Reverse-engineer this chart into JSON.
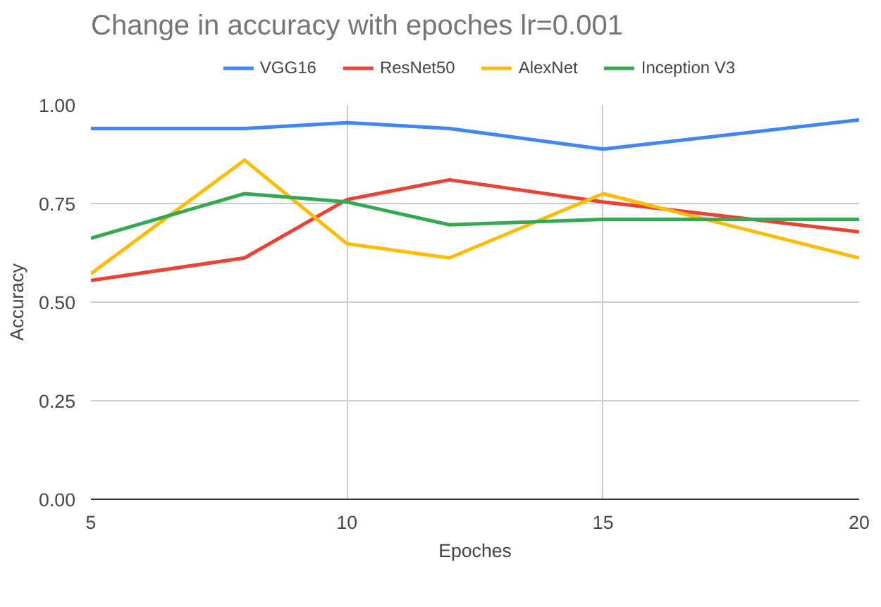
{
  "chart_data": {
    "type": "line",
    "title": "Change in accuracy with epoches lr=0.001",
    "xlabel": "Epoches",
    "ylabel": "Accuracy",
    "x": [
      5,
      8,
      10,
      12,
      15,
      20
    ],
    "series": [
      {
        "name": "VGG16",
        "color": "#4285f4",
        "values": [
          0.94,
          0.94,
          0.955,
          0.94,
          0.888,
          0.962
        ]
      },
      {
        "name": "ResNet50",
        "color": "#ea4335",
        "values": [
          0.555,
          0.612,
          0.76,
          0.81,
          0.754,
          0.678
        ]
      },
      {
        "name": "AlexNet",
        "color": "#fbbc04",
        "values": [
          0.572,
          0.86,
          0.648,
          0.612,
          0.775,
          0.612
        ]
      },
      {
        "name": "Inception V3",
        "color": "#34a853",
        "values": [
          0.662,
          0.775,
          0.754,
          0.696,
          0.71,
          0.71
        ]
      }
    ],
    "xlim": [
      5,
      20
    ],
    "xticks": [
      5,
      10,
      15,
      20
    ],
    "ylim": [
      0,
      1
    ],
    "yticks": [
      {
        "value": 0,
        "label": "0.00"
      },
      {
        "value": 0.25,
        "label": "0.25"
      },
      {
        "value": 0.5,
        "label": "0.50"
      },
      {
        "value": 0.75,
        "label": "0.75"
      },
      {
        "value": 1,
        "label": "1.00"
      }
    ],
    "grid": true,
    "legend": "top",
    "marker": "none",
    "line_style": "solid"
  }
}
